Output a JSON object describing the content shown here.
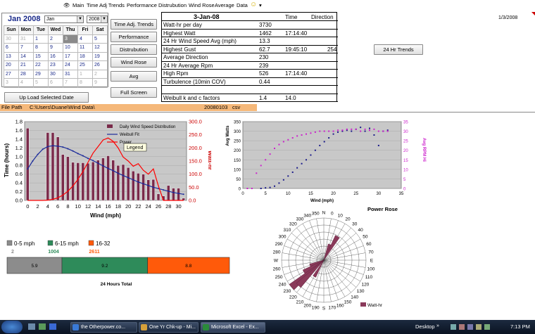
{
  "menubar": {
    "items": [
      "Main",
      "Time Adj Trends",
      "Performance",
      "Distrubution",
      "Wind Rose",
      "Average",
      "Data"
    ]
  },
  "calendar": {
    "month_title": "Jan 2008",
    "month_select": "Jan",
    "year_select": "2008",
    "day_headers": [
      "Sun",
      "Mon",
      "Tue",
      "Wed",
      "Thu",
      "Fri",
      "Sat"
    ],
    "weeks": [
      [
        "30",
        "31",
        "1",
        "2",
        "3",
        "4",
        "5"
      ],
      [
        "6",
        "7",
        "8",
        "9",
        "10",
        "11",
        "12"
      ],
      [
        "13",
        "14",
        "15",
        "16",
        "17",
        "18",
        "19"
      ],
      [
        "20",
        "21",
        "22",
        "23",
        "24",
        "25",
        "26"
      ],
      [
        "27",
        "28",
        "29",
        "30",
        "31",
        "1",
        "2"
      ],
      [
        "3",
        "4",
        "5",
        "6",
        "7",
        "8",
        "9"
      ]
    ],
    "selected_day": "3"
  },
  "buttons": {
    "upload": "Up Load Selected Date",
    "time_adj_trends": "Time Adj. Trends",
    "performance": "Performance",
    "distribution": "Distrubution",
    "wind_rose": "Wind Rose",
    "avg": "Avg",
    "full_screen": "Full Screen",
    "trends_24hr": "24 Hr Trends"
  },
  "datatable": {
    "date": "3-Jan-08",
    "col_time": "Time",
    "col_direction": "Direction",
    "rows": [
      {
        "label": "Watt-hr per day",
        "value": "3730",
        "time": "",
        "dir": ""
      },
      {
        "label": "Highest Watt",
        "value": "1462",
        "time": "17:14:40",
        "dir": ""
      },
      {
        "label": "24 Hr Wind Speed Avg (mph)",
        "value": "13.3",
        "time": "",
        "dir": ""
      },
      {
        "label": "Highest Gust",
        "value": "62.7",
        "time": "19:45:10",
        "dir": "254"
      },
      {
        "label": "Average Direction",
        "value": "230",
        "time": "",
        "dir": ""
      },
      {
        "label": "24 Hr Average Rpm",
        "value": "239",
        "time": "",
        "dir": ""
      },
      {
        "label": "High Rpm",
        "value": "526",
        "time": "17:14:40",
        "dir": ""
      },
      {
        "label": "Turbulence (10min COV)",
        "value": "0.44",
        "time": "",
        "dir": ""
      },
      {
        "label": "",
        "value": "",
        "time": "",
        "dir": ""
      },
      {
        "label": "Weibull k and c factors",
        "value": "1.4",
        "time": "14.0",
        "dir": ""
      }
    ]
  },
  "date_cell": "1/3/2008",
  "filepath": {
    "label": "File Path",
    "path": "C:\\Users\\Duane\\Wind Data\\",
    "file": "20080103",
    "ext": "csv"
  },
  "chart_data": [
    {
      "type": "bar",
      "title": "",
      "xlabel": "Wind (mph)",
      "ylabel": "Time (hours)",
      "y2label": "Watt-hr",
      "ylim": [
        0,
        1.8
      ],
      "y2lim": [
        0,
        300
      ],
      "x_ticks": [
        "0",
        "2",
        "4",
        "6",
        "8",
        "10",
        "12",
        "14",
        "16",
        "18",
        "20",
        "22",
        "24",
        "26",
        "28",
        "30"
      ],
      "y_ticks": [
        "0.0",
        "0.2",
        "0.4",
        "0.6",
        "0.8",
        "1.0",
        "1.2",
        "1.4",
        "1.6",
        "1.8"
      ],
      "y2_ticks": [
        "0.0",
        "50.0",
        "100.0",
        "150.0",
        "200.0",
        "250.0",
        "300.0"
      ],
      "legend": [
        "Daily Wind Speed Distribution",
        "Weibull Fit",
        "Power"
      ],
      "legend_tooltip": "Legend",
      "categories": [
        0,
        1,
        2,
        3,
        4,
        5,
        6,
        7,
        8,
        9,
        10,
        11,
        12,
        13,
        14,
        15,
        16,
        17,
        18,
        19,
        20,
        21,
        22,
        23,
        24,
        25,
        26,
        27,
        28,
        29,
        30,
        31
      ],
      "series": [
        {
          "name": "Daily Wind Speed Distribution",
          "values": [
            1.65,
            0,
            0,
            0,
            1.55,
            1.55,
            1.45,
            1.05,
            1.0,
            0.87,
            0.86,
            0.86,
            0.85,
            0.88,
            0.92,
            0.97,
            1.02,
            0.92,
            0.8,
            0.82,
            0.75,
            0.67,
            0.62,
            0.6,
            0.47,
            0.48,
            0.15,
            0.1,
            0.34,
            0.28,
            0.28,
            0.05
          ]
        },
        {
          "name": "Weibull Fit",
          "values": [
            0.72,
            0.9,
            1.05,
            1.17,
            1.23,
            1.25,
            1.24,
            1.22,
            1.18,
            1.13,
            1.07,
            1.02,
            0.96,
            0.91,
            0.85,
            0.79,
            0.73,
            0.68,
            0.62,
            0.57,
            0.52,
            0.47,
            0.42,
            0.38,
            0.34,
            0.3,
            0.27,
            0.24,
            0.21,
            0.18,
            0.16,
            0.14
          ]
        },
        {
          "name": "Power",
          "values": [
            0,
            0,
            0,
            0,
            1,
            4,
            10,
            20,
            35,
            55,
            80,
            110,
            145,
            180,
            205,
            230,
            238,
            225,
            200,
            165,
            150,
            130,
            140,
            115,
            100,
            120,
            55,
            0,
            0,
            0,
            0,
            0
          ]
        }
      ]
    },
    {
      "type": "scatter",
      "xlabel": "Wind (mph)",
      "ylabel": "Avg Watts",
      "y2label": "Avg RPM Hi",
      "xlim": [
        0,
        35
      ],
      "ylim": [
        0,
        350
      ],
      "y2lim": [
        0,
        35
      ],
      "x_ticks": [
        "0",
        "5",
        "10",
        "15",
        "20",
        "25",
        "30",
        "35"
      ],
      "y_ticks": [
        "0",
        "50",
        "100",
        "150",
        "200",
        "250",
        "300",
        "350"
      ],
      "y2_ticks": [
        "0",
        "5",
        "10",
        "15",
        "20",
        "25",
        "30",
        "35"
      ],
      "series": [
        {
          "name": "Avg Watts",
          "points": [
            [
              4,
              0
            ],
            [
              5,
              3
            ],
            [
              6,
              5
            ],
            [
              7,
              12
            ],
            [
              8,
              28
            ],
            [
              9,
              45
            ],
            [
              10,
              65
            ],
            [
              11,
              85
            ],
            [
              12,
              108
            ],
            [
              13,
              130
            ],
            [
              14,
              150
            ],
            [
              15,
              175
            ],
            [
              16,
              200
            ],
            [
              17,
              225
            ],
            [
              18,
              245
            ],
            [
              19,
              265
            ],
            [
              20,
              285
            ],
            [
              21,
              295
            ],
            [
              22,
              300
            ],
            [
              23,
              305
            ],
            [
              24,
              300
            ],
            [
              25,
              310
            ],
            [
              26,
              320
            ],
            [
              27,
              300
            ],
            [
              28,
              315
            ],
            [
              29,
              280
            ],
            [
              30,
              225
            ],
            [
              31,
              300
            ],
            [
              32,
              305
            ]
          ]
        },
        {
          "name": "Avg RPM Hi",
          "points": [
            [
              1,
              0
            ],
            [
              2,
              0
            ],
            [
              3,
              8
            ],
            [
              4,
              12
            ],
            [
              5,
              15
            ],
            [
              6,
              18
            ],
            [
              7,
              21
            ],
            [
              8,
              23
            ],
            [
              9,
              24.5
            ],
            [
              10,
              25.5
            ],
            [
              11,
              26.5
            ],
            [
              12,
              27.5
            ],
            [
              13,
              28
            ],
            [
              14,
              28.5
            ],
            [
              15,
              29
            ],
            [
              16,
              29.5
            ],
            [
              17,
              30
            ],
            [
              18,
              30
            ],
            [
              19,
              30
            ],
            [
              20,
              30
            ],
            [
              21,
              30.5
            ],
            [
              22,
              30.5
            ],
            [
              23,
              31
            ],
            [
              24,
              31
            ],
            [
              25,
              31
            ],
            [
              26,
              30
            ],
            [
              27,
              31
            ],
            [
              28,
              30.5
            ],
            [
              29,
              31
            ],
            [
              30,
              30
            ],
            [
              31,
              30
            ],
            [
              32,
              30
            ]
          ]
        }
      ]
    },
    {
      "type": "radar",
      "title": "Power Rose",
      "legend": [
        "Watt-hr"
      ],
      "angle_labels": [
        "0",
        "10",
        "20",
        "30",
        "40",
        "50",
        "60",
        "70",
        "E",
        "100",
        "110",
        "120",
        "130",
        "140",
        "150",
        "160",
        "170",
        "S",
        "190",
        "200",
        "210",
        "220",
        "230",
        "240",
        "250",
        "260",
        "W",
        "280",
        "290",
        "300",
        "310",
        "320",
        "330",
        "340",
        "350",
        "N"
      ],
      "directions_deg": [
        230,
        225,
        240,
        250,
        30,
        210,
        20
      ],
      "magnitudes": [
        1.0,
        0.85,
        0.55,
        0.35,
        0.65,
        0.45,
        0.4
      ]
    },
    {
      "type": "bar",
      "title": "24 Hours Total",
      "legend": [
        "0-5 mph",
        "6-15 mph",
        "16-32"
      ],
      "values_top": [
        "2",
        "1004",
        "2611"
      ],
      "segment_labels": [
        "5.9",
        "9.2",
        "8.8"
      ],
      "segment_hours": [
        5.9,
        9.2,
        8.8
      ],
      "colors": [
        "#8c8c8c",
        "#2e8b5a",
        "#ff5a0a"
      ]
    }
  ],
  "colors": {
    "bar_fill": "#7a2a4a",
    "weibull": "#1a2a9a",
    "power": "#ff0000",
    "plot_bg": "#c8c8c8",
    "filepath_bg": "#f5b87a",
    "rpm_color": "#cc22cc",
    "watts_color": "#1a1a8a"
  },
  "taskbar": {
    "items": [
      "the Otherpower.co...",
      "One Yr Chk-up - Mi...",
      "Microsoft Excel - Ex..."
    ],
    "desktop": "Desktop",
    "time": "7:13 PM"
  }
}
